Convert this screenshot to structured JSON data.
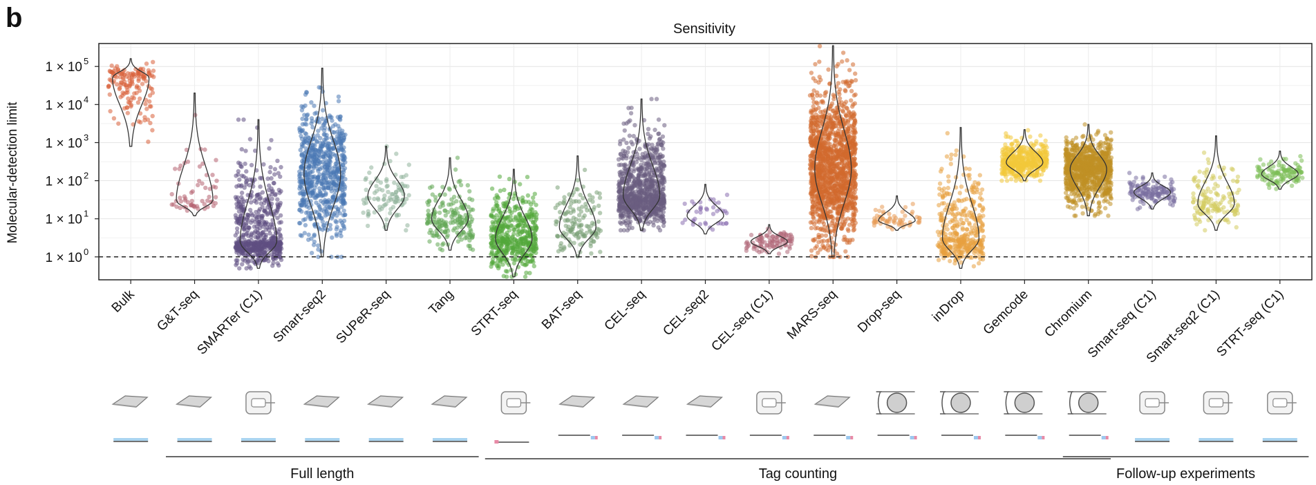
{
  "panel_letter": "b",
  "chart_data": {
    "type": "violin",
    "title": "Sensitivity",
    "ylabel": "Molecular-detection limit",
    "xlabel": "",
    "yscale": "log",
    "ylim": [
      0.25,
      400000
    ],
    "y_ticks": [
      {
        "value": 1,
        "label": "1 × 10",
        "exp": "0"
      },
      {
        "value": 10,
        "label": "1 × 10",
        "exp": "1"
      },
      {
        "value": 100,
        "label": "1 × 10",
        "exp": "2"
      },
      {
        "value": 1000,
        "label": "1 × 10",
        "exp": "3"
      },
      {
        "value": 10000,
        "label": "1 × 10",
        "exp": "4"
      },
      {
        "value": 100000,
        "label": "1 × 10",
        "exp": "5"
      }
    ],
    "reference_line": {
      "value": 1,
      "style": "dashed"
    },
    "grid": true,
    "categories": [
      {
        "name": "Bulk",
        "color": "#d9603b",
        "median": 50000,
        "min": 800,
        "max": 160000,
        "n": 150
      },
      {
        "name": "G&T-seq",
        "color": "#b56070",
        "median": 30,
        "min": 12,
        "max": 20000,
        "n": 60
      },
      {
        "name": "SMARTer (C1)",
        "color": "#5e4e82",
        "median": 2.5,
        "min": 0.5,
        "max": 4000,
        "n": 600
      },
      {
        "name": "Smart-seq2",
        "color": "#4a78b5",
        "median": 150,
        "min": 1,
        "max": 90000,
        "n": 700
      },
      {
        "name": "SUPeR-seq",
        "color": "#8fb39a",
        "median": 40,
        "min": 5,
        "max": 800,
        "n": 100
      },
      {
        "name": "Tang",
        "color": "#62a856",
        "median": 10,
        "min": 1.5,
        "max": 400,
        "n": 200
      },
      {
        "name": "STRT-seq",
        "color": "#52a83a",
        "median": 3,
        "min": 0.3,
        "max": 200,
        "n": 500
      },
      {
        "name": "BAT-seq",
        "color": "#7aa076",
        "median": 6,
        "min": 1,
        "max": 450,
        "n": 150
      },
      {
        "name": "CEL-seq",
        "color": "#6a5c80",
        "median": 40,
        "min": 5,
        "max": 14000,
        "n": 900
      },
      {
        "name": "CEL-seq2",
        "color": "#8a70b0",
        "median": 12,
        "min": 4,
        "max": 80,
        "n": 40
      },
      {
        "name": "CEL-seq (C1)",
        "color": "#b06878",
        "median": 2.5,
        "min": 1.2,
        "max": 7,
        "n": 100
      },
      {
        "name": "MARS-seq",
        "color": "#d2692d",
        "median": 200,
        "min": 1,
        "max": 350000,
        "n": 1500
      },
      {
        "name": "Drop-seq",
        "color": "#e89a55",
        "median": 9,
        "min": 5,
        "max": 40,
        "n": 60
      },
      {
        "name": "inDrop",
        "color": "#e8a040",
        "median": 3,
        "min": 0.5,
        "max": 2500,
        "n": 400
      },
      {
        "name": "Gemcode",
        "color": "#f2c93a",
        "median": 300,
        "min": 100,
        "max": 2200,
        "n": 500
      },
      {
        "name": "Chromium",
        "color": "#c09025",
        "median": 200,
        "min": 12,
        "max": 3000,
        "n": 900
      },
      {
        "name": "Smart-seq (C1)",
        "color": "#7a6fa0",
        "median": 50,
        "min": 18,
        "max": 160,
        "n": 150
      },
      {
        "name": "Smart-seq2 (C1)",
        "color": "#d4cc60",
        "median": 25,
        "min": 5,
        "max": 1500,
        "n": 150
      },
      {
        "name": "STRT-seq (C1)",
        "color": "#7cbd55",
        "median": 150,
        "min": 60,
        "max": 600,
        "n": 120
      }
    ],
    "groups": [
      {
        "label": "Full length",
        "first": "G&T-seq",
        "last": "Tang"
      },
      {
        "label": "Tag counting",
        "first": "STRT-seq",
        "last": "Chromium"
      },
      {
        "label": "Follow-up experiments",
        "first": "Chromium",
        "last": "STRT-seq (C1)"
      }
    ],
    "platform_icons": [
      "plate",
      "plate",
      "c1",
      "plate",
      "plate",
      "plate",
      "c1",
      "plate",
      "plate",
      "plate",
      "c1",
      "plate",
      "droplet",
      "droplet",
      "droplet",
      "droplet",
      "c1",
      "c1",
      "c1"
    ],
    "read_icons": [
      "full",
      "full",
      "full",
      "full",
      "full",
      "full",
      "tag-left",
      "tag-right",
      "tag-right",
      "tag-right",
      "tag-right",
      "tag-right",
      "tag-right",
      "tag-right",
      "tag-right",
      "tag-right",
      "full",
      "full",
      "full"
    ]
  }
}
